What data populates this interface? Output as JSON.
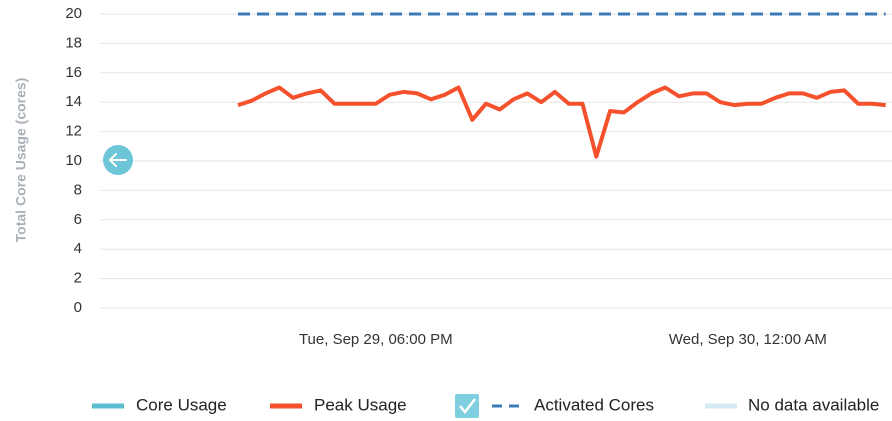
{
  "chart_data": {
    "type": "line",
    "y_label": "Total Core Usage (cores)",
    "ylim": [
      0,
      20
    ],
    "yticks": [
      0,
      2,
      4,
      6,
      8,
      10,
      12,
      14,
      16,
      18,
      20
    ],
    "grid": true,
    "categories": [
      null,
      null,
      null,
      null,
      null,
      null,
      null,
      null,
      null,
      null,
      "Tue, Sep 29, 06:00 PM",
      null,
      null,
      null,
      null,
      null,
      null,
      null,
      null,
      null,
      null,
      null,
      null,
      null,
      null,
      null,
      null,
      null,
      null,
      null,
      null,
      null,
      null,
      null,
      null,
      null,
      null,
      "Wed, Sep 30, 12:00 AM",
      null,
      null,
      null,
      null,
      null,
      null,
      null,
      null,
      null,
      null
    ],
    "series": [
      {
        "name": "Core Usage",
        "color": "#5bbdd1",
        "style": "solid",
        "values": [
          null,
          null,
          null,
          null,
          null,
          null,
          null,
          null,
          null,
          null,
          null,
          null,
          null,
          null,
          null,
          null,
          null,
          null,
          null,
          null,
          null,
          null,
          null,
          null,
          null,
          null,
          null,
          null,
          null,
          null,
          null,
          null,
          null,
          null,
          null,
          null,
          null,
          null,
          null,
          null,
          null,
          null,
          null,
          null,
          null,
          null,
          null,
          null
        ]
      },
      {
        "name": "Peak Usage",
        "color": "#f4512c",
        "style": "solid",
        "values": [
          13.8,
          14.1,
          14.6,
          15.0,
          14.3,
          14.6,
          14.8,
          13.9,
          13.9,
          13.9,
          13.9,
          14.5,
          14.7,
          14.6,
          14.2,
          14.5,
          15.0,
          12.8,
          13.9,
          13.5,
          14.2,
          14.6,
          14.0,
          14.7,
          13.9,
          13.9,
          10.3,
          13.4,
          13.3,
          14.0,
          14.6,
          15.0,
          14.4,
          14.6,
          14.6,
          14.0,
          13.8,
          13.9,
          13.9,
          14.3,
          14.6,
          14.6,
          14.3,
          14.7,
          14.8,
          13.9,
          13.9,
          13.8
        ]
      },
      {
        "name": "Activated Cores",
        "color": "#3d7ab8",
        "style": "dashed",
        "checked": true,
        "values": [
          20,
          20,
          20,
          20,
          20,
          20,
          20,
          20,
          20,
          20,
          20,
          20,
          20,
          20,
          20,
          20,
          20,
          20,
          20,
          20,
          20,
          20,
          20,
          20,
          20,
          20,
          20,
          20,
          20,
          20,
          20,
          20,
          20,
          20,
          20,
          20,
          20,
          20,
          20,
          20,
          20,
          20,
          20,
          20,
          20,
          20,
          20,
          20
        ]
      },
      {
        "name": "No data available",
        "color": "#d3ebf4",
        "style": "solid",
        "values": [
          null,
          null,
          null,
          null,
          null,
          null,
          null,
          null,
          null,
          null,
          null,
          null,
          null,
          null,
          null,
          null,
          null,
          null,
          null,
          null,
          null,
          null,
          null,
          null,
          null,
          null,
          null,
          null,
          null,
          null,
          null,
          null,
          null,
          null,
          null,
          null,
          null,
          null,
          null,
          null,
          null,
          null,
          null,
          null,
          null,
          null,
          null,
          null
        ]
      }
    ]
  }
}
